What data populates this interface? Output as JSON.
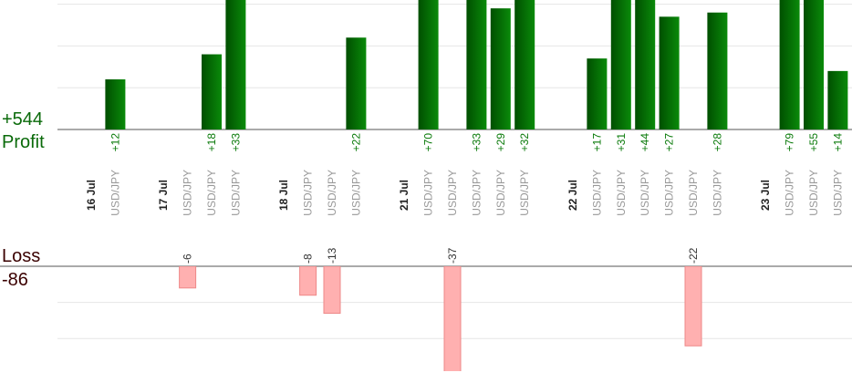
{
  "chart_data": {
    "type": "bar",
    "profit_total": "+544",
    "profit_label": "Profit",
    "loss_label": "Loss",
    "loss_total": "-86",
    "profit_axis": {
      "ylim": [
        0,
        31
      ],
      "yticks": [
        0,
        10,
        20,
        30
      ]
    },
    "loss_axis": {
      "ylim": [
        -29,
        0
      ],
      "yticks": [
        0,
        -10,
        -20
      ]
    },
    "profit_color": "#0a7a0a",
    "loss_color": "#ffb0b0",
    "columns": [
      {
        "date": "16 Jul"
      },
      {
        "pair": "USD/JPY",
        "value": 12,
        "value_label": "+12"
      },
      {},
      {
        "date": "17 Jul"
      },
      {
        "pair": "USD/JPY",
        "value": -6
      },
      {
        "pair": "USD/JPY",
        "value": 18,
        "value_label": "+18"
      },
      {
        "pair": "USD/JPY",
        "value": 33,
        "value_label": "+33"
      },
      {},
      {
        "date": "18 Jul"
      },
      {
        "pair": "USD/JPY",
        "value": -8
      },
      {
        "pair": "USD/JPY",
        "value": -13
      },
      {
        "pair": "USD/JPY",
        "value": 22,
        "value_label": "+22"
      },
      {},
      {
        "date": "21 Jul"
      },
      {
        "pair": "USD/JPY",
        "value": 70,
        "value_label": "+70"
      },
      {
        "pair": "USD/JPY",
        "value": -37
      },
      {
        "pair": "USD/JPY",
        "value": 33,
        "value_label": "+33"
      },
      {
        "pair": "USD/JPY",
        "value": 29,
        "value_label": "+29"
      },
      {
        "pair": "USD/JPY",
        "value": 32,
        "value_label": "+32"
      },
      {},
      {
        "date": "22 Jul"
      },
      {
        "pair": "USD/JPY",
        "value": 17,
        "value_label": "+17"
      },
      {
        "pair": "USD/JPY",
        "value": 31,
        "value_label": "+31"
      },
      {
        "pair": "USD/JPY",
        "value": 44,
        "value_label": "+44"
      },
      {
        "pair": "USD/JPY",
        "value": 27,
        "value_label": "+27"
      },
      {
        "pair": "USD/JPY",
        "value": -22
      },
      {
        "pair": "USD/JPY",
        "value": 28,
        "value_label": "+28"
      },
      {},
      {
        "date": "23 Jul"
      },
      {
        "pair": "USD/JPY",
        "value": 79,
        "value_label": "+79"
      },
      {
        "pair": "USD/JPY",
        "value": 55,
        "value_label": "+55"
      },
      {
        "pair": "USD/JPY",
        "value": 14,
        "value_label": "+14"
      }
    ]
  }
}
